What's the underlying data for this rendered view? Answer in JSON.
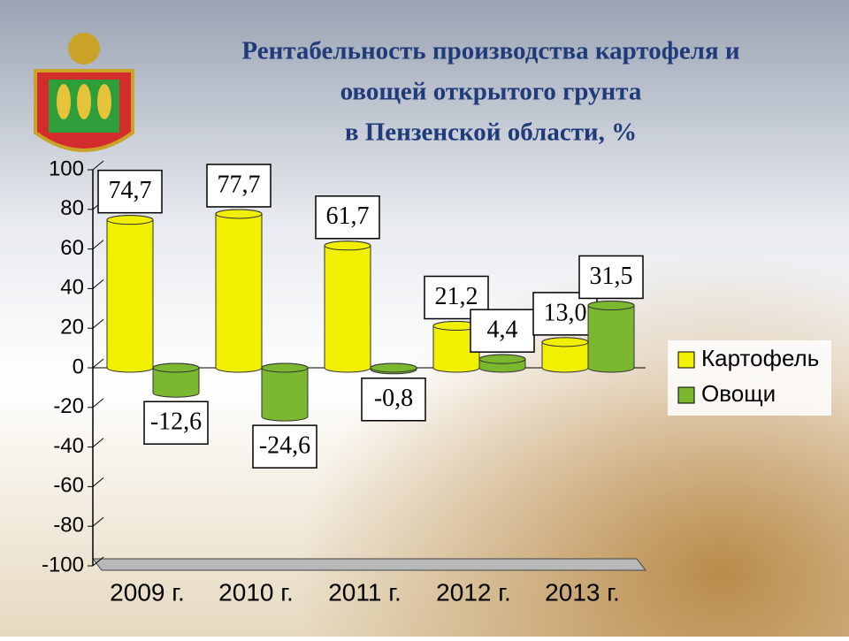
{
  "chart_data": {
    "type": "bar",
    "title": [
      "Рентабельность производства картофеля и",
      "овощей открытого грунта",
      "в Пензенской области, %"
    ],
    "categories": [
      "2009 г.",
      "2010 г.",
      "2011 г.",
      "2012 г.",
      "2013 г."
    ],
    "series": [
      {
        "name": "Картофель",
        "color": "#f0f000",
        "values": [
          74.7,
          77.7,
          61.7,
          21.2,
          13.0
        ],
        "value_labels": [
          "74,7",
          "77,7",
          "61,7",
          "21,2",
          "13,0"
        ]
      },
      {
        "name": "Овощи",
        "color": "#7cb82f",
        "values": [
          -12.6,
          -24.6,
          -0.8,
          4.4,
          31.5
        ],
        "value_labels": [
          "-12,6",
          "-24,6",
          "-0,8",
          "4,4",
          "31,5"
        ]
      }
    ],
    "ylim": [
      -100,
      100
    ],
    "yticks": [
      -100,
      -80,
      -60,
      -40,
      -20,
      0,
      20,
      40,
      60,
      80,
      100
    ],
    "legend": "right"
  }
}
